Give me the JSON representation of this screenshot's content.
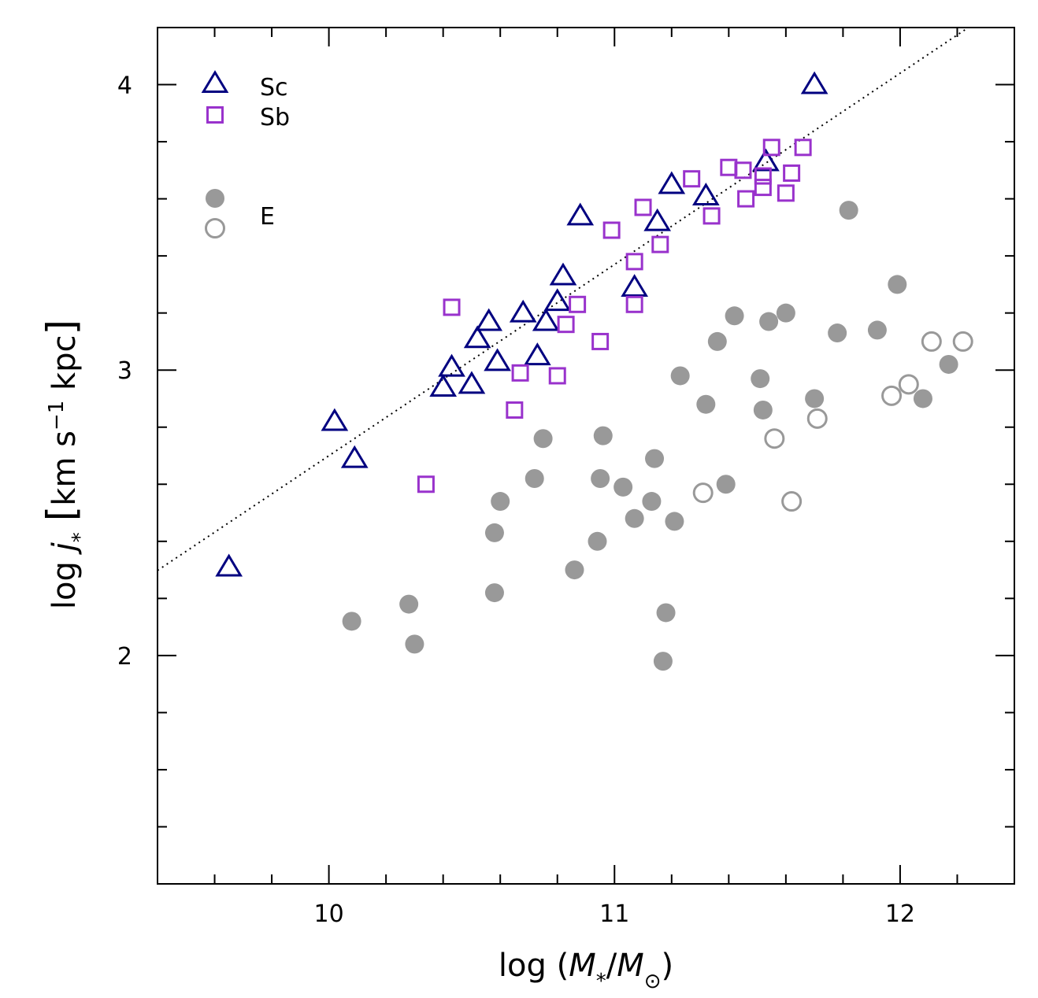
{
  "chart_data": {
    "type": "scatter",
    "title": "",
    "xlabel": {
      "prefix": "log (",
      "m1": "M",
      "sub1": "*",
      "slash": "/",
      "m2": "M",
      "sub2": "⊙",
      "suffix": ")"
    },
    "ylabel": {
      "prefix": "log ",
      "j": "j",
      "sub": "*",
      "bracket_open": "[",
      "units1": "km s",
      "sup": "−1",
      "units2": " kpc",
      "bracket_close": "]"
    },
    "xlim": [
      9.4,
      12.4
    ],
    "ylim": [
      1.2,
      4.2
    ],
    "x_ticks": [
      10,
      11,
      12
    ],
    "x_tick_labels": [
      "10",
      "11",
      "12"
    ],
    "y_ticks": [
      2,
      3,
      4
    ],
    "y_tick_labels": [
      "2",
      "3",
      "4"
    ],
    "legend": [
      {
        "label": "Sc",
        "series": "Sc"
      },
      {
        "label": "Sb",
        "series": "Sb"
      },
      {
        "label": "E",
        "series": "E"
      }
    ],
    "fit_line": {
      "slope": 0.67,
      "intercept": -4.0,
      "style": "dotted"
    },
    "colors": {
      "Sc": "#000080",
      "Sb": "#9932cc",
      "E": "#999999"
    },
    "series": [
      {
        "name": "Sc",
        "marker": "triangle-open",
        "x": [
          9.65,
          10.02,
          10.09,
          10.4,
          10.43,
          10.5,
          10.52,
          10.56,
          10.59,
          10.68,
          10.73,
          10.76,
          10.8,
          10.82,
          10.88,
          11.07,
          11.15,
          11.2,
          11.32,
          11.53,
          11.7
        ],
        "y": [
          2.31,
          2.82,
          2.69,
          2.94,
          3.01,
          2.95,
          3.11,
          3.17,
          3.03,
          3.2,
          3.05,
          3.17,
          3.24,
          3.33,
          3.54,
          3.29,
          3.52,
          3.65,
          3.61,
          3.73,
          4.0
        ]
      },
      {
        "name": "Sb",
        "marker": "square-open",
        "x": [
          10.34,
          10.43,
          10.65,
          10.67,
          10.8,
          10.83,
          10.87,
          10.95,
          10.99,
          11.07,
          11.07,
          11.1,
          11.16,
          11.27,
          11.34,
          11.4,
          11.45,
          11.46,
          11.52,
          11.52,
          11.55,
          11.6,
          11.62,
          11.66
        ],
        "y": [
          2.6,
          3.22,
          2.86,
          2.99,
          2.98,
          3.16,
          3.23,
          3.1,
          3.49,
          3.23,
          3.38,
          3.57,
          3.44,
          3.67,
          3.54,
          3.71,
          3.7,
          3.6,
          3.68,
          3.64,
          3.78,
          3.62,
          3.69,
          3.78
        ]
      },
      {
        "name": "E",
        "marker": "circle-filled",
        "x": [
          10.08,
          10.28,
          10.3,
          10.58,
          10.58,
          10.6,
          10.72,
          10.75,
          10.86,
          10.94,
          10.95,
          10.96,
          11.03,
          11.07,
          11.13,
          11.14,
          11.17,
          11.18,
          11.21,
          11.23,
          11.32,
          11.36,
          11.39,
          11.42,
          11.51,
          11.52,
          11.54,
          11.6,
          11.7,
          11.78,
          11.82,
          11.92,
          11.99,
          12.08,
          12.17
        ],
        "y": [
          2.12,
          2.18,
          2.04,
          2.22,
          2.43,
          2.54,
          2.62,
          2.76,
          2.3,
          2.4,
          2.62,
          2.77,
          2.59,
          2.48,
          2.54,
          2.69,
          1.98,
          2.15,
          2.47,
          2.98,
          2.88,
          3.1,
          2.6,
          3.19,
          2.97,
          2.86,
          3.17,
          3.2,
          2.9,
          3.13,
          3.56,
          3.14,
          3.3,
          2.9,
          3.02
        ]
      },
      {
        "name": "E",
        "marker": "circle-open",
        "x": [
          11.31,
          11.56,
          11.62,
          11.71,
          11.97,
          12.03,
          12.11,
          12.22
        ],
        "y": [
          2.57,
          2.76,
          2.54,
          2.83,
          2.91,
          2.95,
          3.1,
          3.1
        ]
      }
    ]
  }
}
